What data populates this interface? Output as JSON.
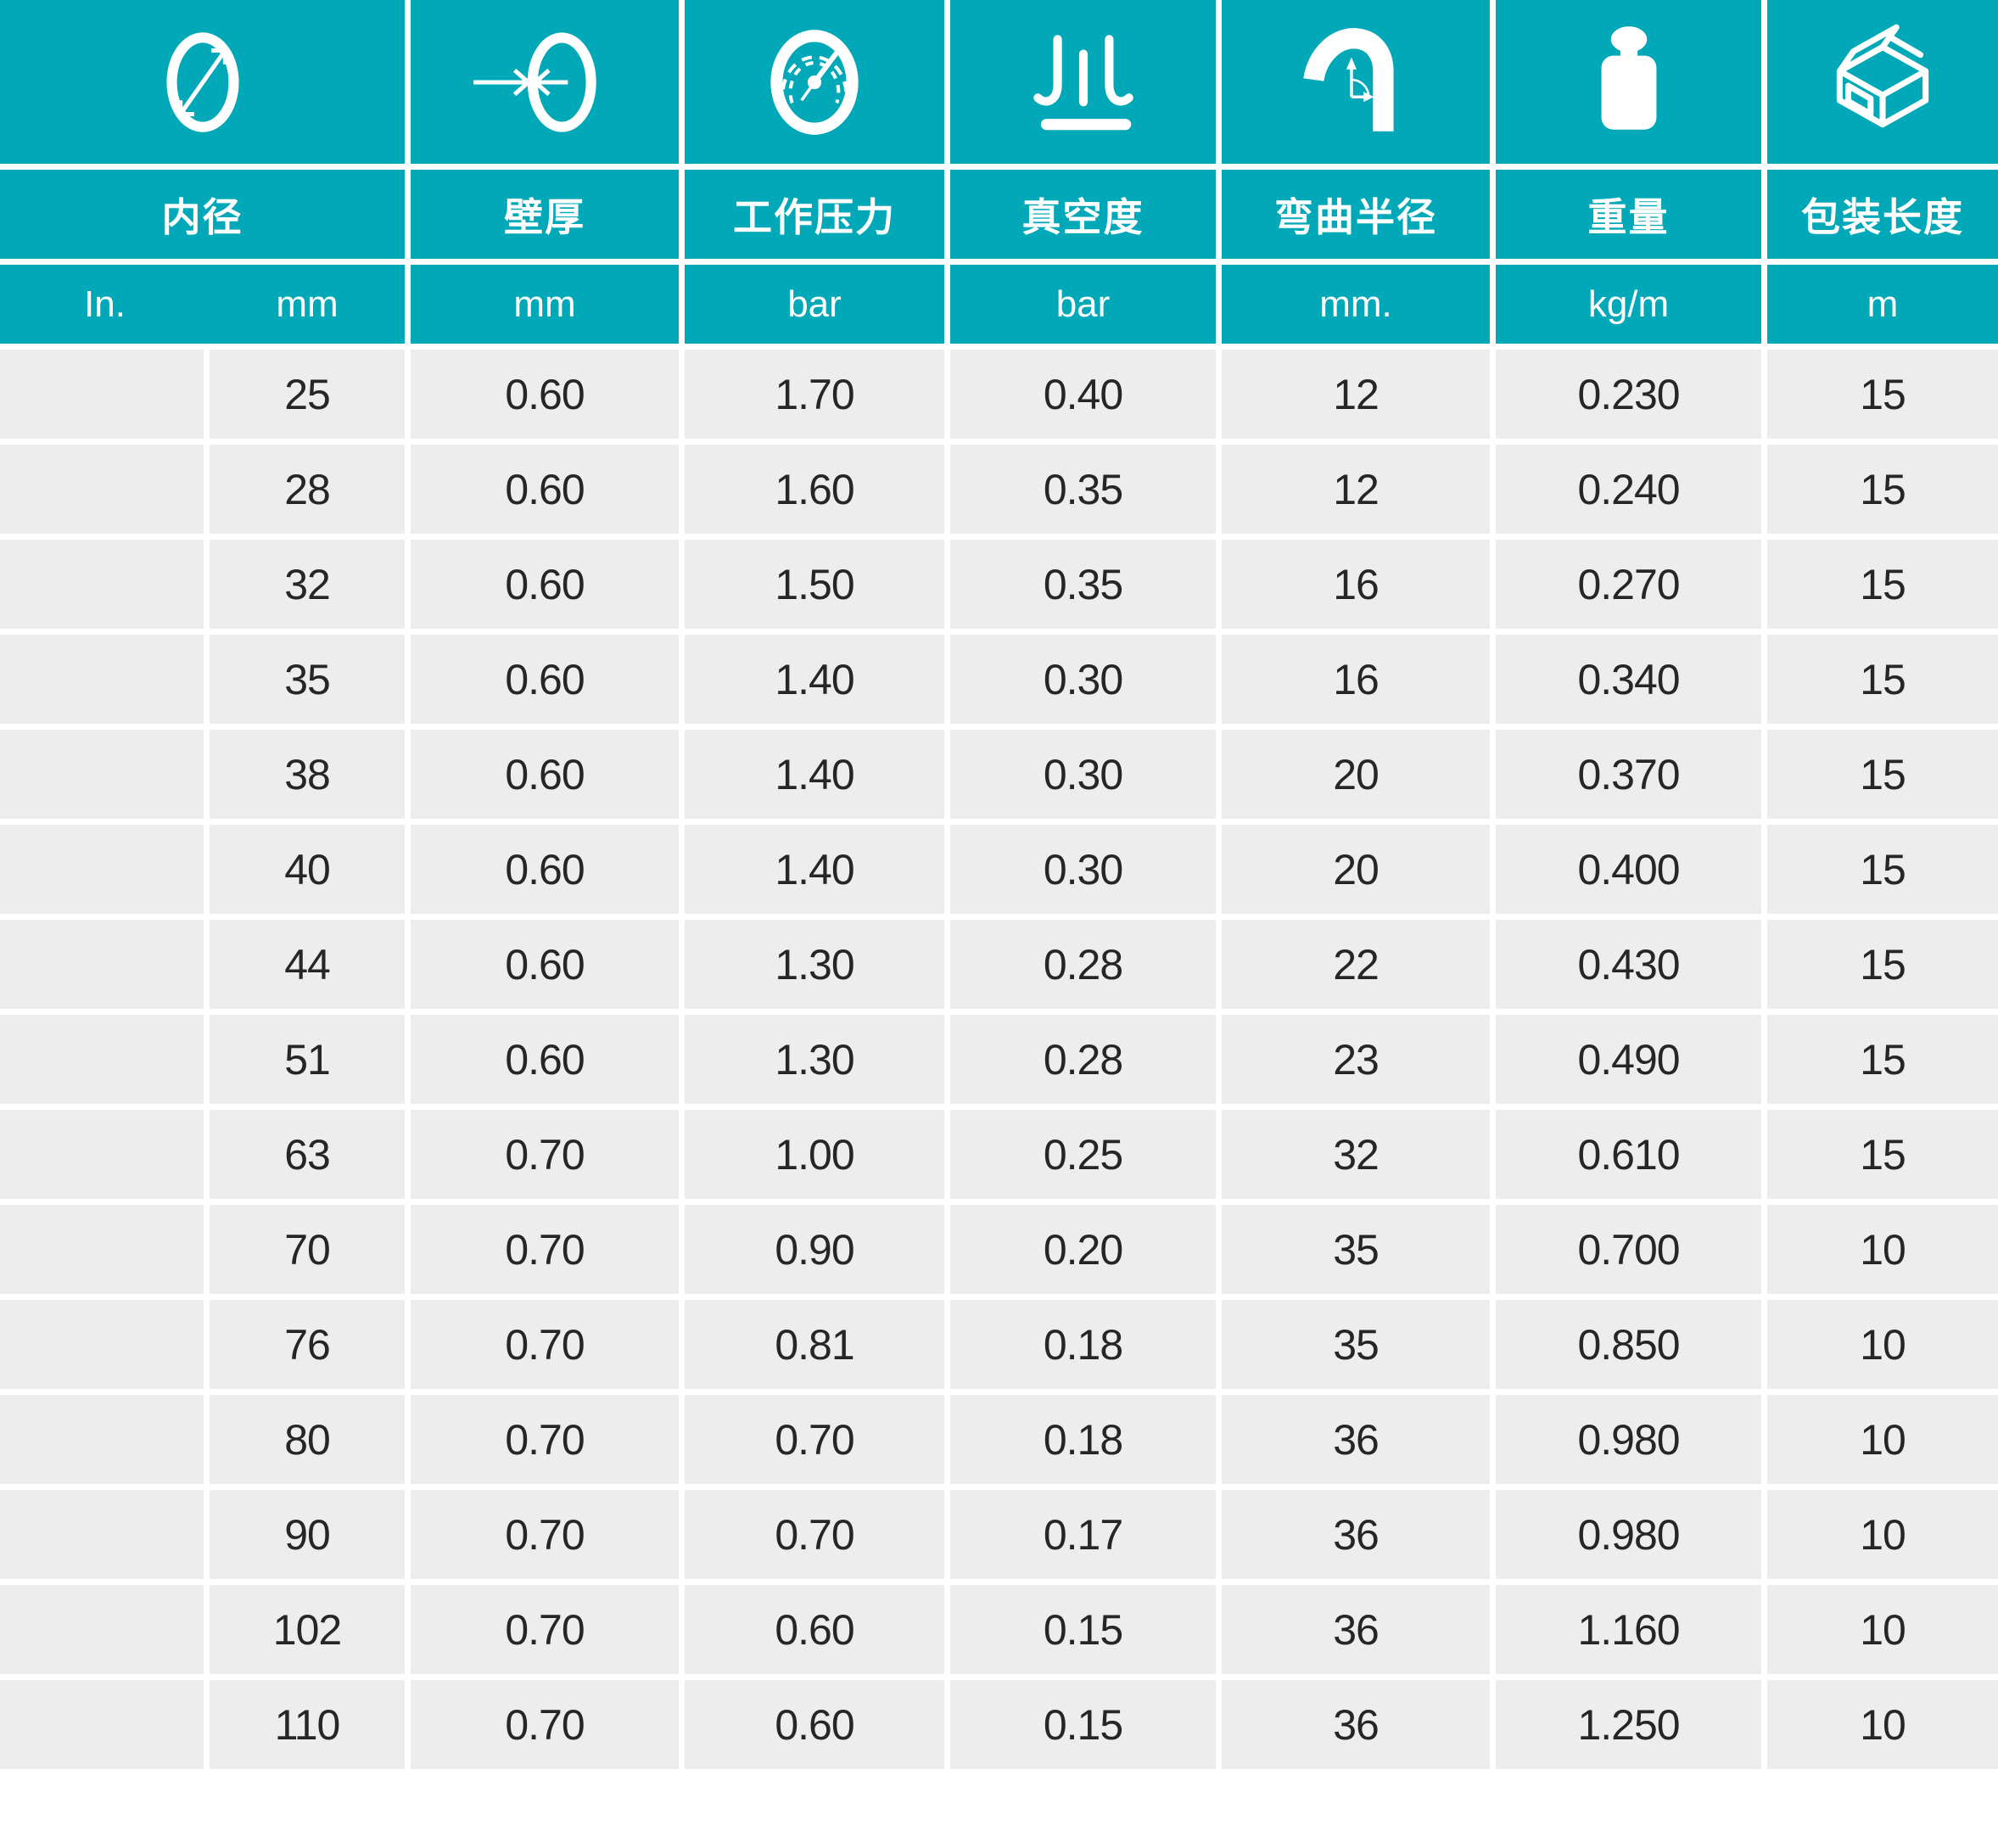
{
  "theme": {
    "teal": "#00a8b8",
    "cell_background": "#ededed",
    "text_dark": "#262626",
    "text_light": "#ffffff"
  },
  "table": {
    "column_icons": [
      "inner-diameter-icon",
      "wall-thickness-icon",
      "working-pressure-gauge-icon",
      "vacuum-icon",
      "bend-radius-icon",
      "weight-icon",
      "packing-length-box-icon"
    ],
    "headers": [
      "内径",
      "壁厚",
      "工作压力",
      "真空度",
      "弯曲半径",
      "重量",
      "包装长度"
    ],
    "units": {
      "in": "In.",
      "mm": "mm",
      "wall": "mm",
      "pressure": "bar",
      "vacuum": "bar",
      "bend": "mm.",
      "weight": "kg/m",
      "length": "m"
    },
    "rows": [
      {
        "in": "",
        "mm": "25",
        "wall": "0.60",
        "pressure": "1.70",
        "vacuum": "0.40",
        "bend": "12",
        "weight": "0.230",
        "length": "15"
      },
      {
        "in": "",
        "mm": "28",
        "wall": "0.60",
        "pressure": "1.60",
        "vacuum": "0.35",
        "bend": "12",
        "weight": "0.240",
        "length": "15"
      },
      {
        "in": "",
        "mm": "32",
        "wall": "0.60",
        "pressure": "1.50",
        "vacuum": "0.35",
        "bend": "16",
        "weight": "0.270",
        "length": "15"
      },
      {
        "in": "",
        "mm": "35",
        "wall": "0.60",
        "pressure": "1.40",
        "vacuum": "0.30",
        "bend": "16",
        "weight": "0.340",
        "length": "15"
      },
      {
        "in": "",
        "mm": "38",
        "wall": "0.60",
        "pressure": "1.40",
        "vacuum": "0.30",
        "bend": "20",
        "weight": "0.370",
        "length": "15"
      },
      {
        "in": "",
        "mm": "40",
        "wall": "0.60",
        "pressure": "1.40",
        "vacuum": "0.30",
        "bend": "20",
        "weight": "0.400",
        "length": "15"
      },
      {
        "in": "",
        "mm": "44",
        "wall": "0.60",
        "pressure": "1.30",
        "vacuum": "0.28",
        "bend": "22",
        "weight": "0.430",
        "length": "15"
      },
      {
        "in": "",
        "mm": "51",
        "wall": "0.60",
        "pressure": "1.30",
        "vacuum": "0.28",
        "bend": "23",
        "weight": "0.490",
        "length": "15"
      },
      {
        "in": "",
        "mm": "63",
        "wall": "0.70",
        "pressure": "1.00",
        "vacuum": "0.25",
        "bend": "32",
        "weight": "0.610",
        "length": "15"
      },
      {
        "in": "",
        "mm": "70",
        "wall": "0.70",
        "pressure": "0.90",
        "vacuum": "0.20",
        "bend": "35",
        "weight": "0.700",
        "length": "10"
      },
      {
        "in": "",
        "mm": "76",
        "wall": "0.70",
        "pressure": "0.81",
        "vacuum": "0.18",
        "bend": "35",
        "weight": "0.850",
        "length": "10"
      },
      {
        "in": "",
        "mm": "80",
        "wall": "0.70",
        "pressure": "0.70",
        "vacuum": "0.18",
        "bend": "36",
        "weight": "0.980",
        "length": "10"
      },
      {
        "in": "",
        "mm": "90",
        "wall": "0.70",
        "pressure": "0.70",
        "vacuum": "0.17",
        "bend": "36",
        "weight": "0.980",
        "length": "10"
      },
      {
        "in": "",
        "mm": "102",
        "wall": "0.70",
        "pressure": "0.60",
        "vacuum": "0.15",
        "bend": "36",
        "weight": "1.160",
        "length": "10"
      },
      {
        "in": "",
        "mm": "110",
        "wall": "0.70",
        "pressure": "0.60",
        "vacuum": "0.15",
        "bend": "36",
        "weight": "1.250",
        "length": "10"
      }
    ]
  }
}
